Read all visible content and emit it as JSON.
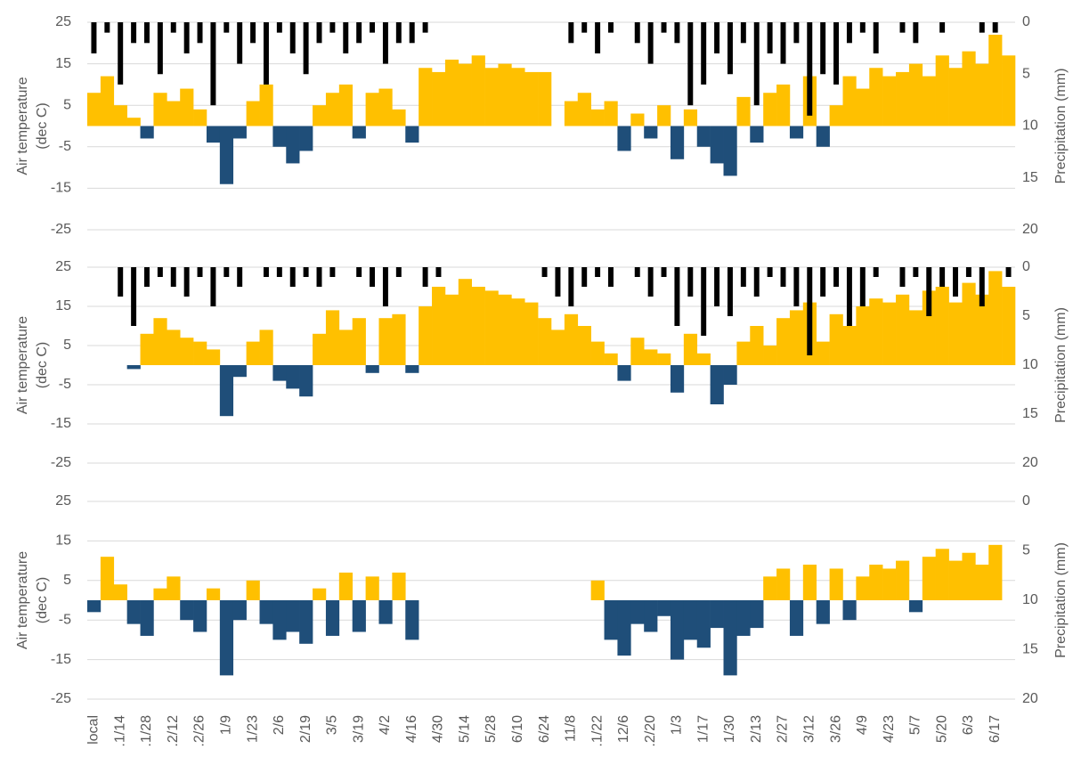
{
  "chart_data": [
    {
      "type": "bar",
      "ylabel": [
        "Air temperature",
        "(dec C)"
      ],
      "y2label": "Precipitation  (mm)",
      "ylim": [
        -25,
        25
      ],
      "yticks": [
        25,
        15,
        5,
        -5,
        -15,
        -25
      ],
      "y2lim": [
        0,
        20
      ],
      "y2ticks": [
        0,
        5,
        10,
        15,
        20
      ],
      "y2_inverted": true,
      "grid": true,
      "series": [
        {
          "color_positive": "#FFC000",
          "color_negative": "#1F4E79",
          "values": [
            8,
            12,
            5,
            2,
            -3,
            8,
            6,
            9,
            4,
            -4,
            -14,
            -3,
            6,
            10,
            -5,
            -9,
            -6,
            5,
            8,
            10,
            -3,
            8,
            9,
            4,
            -4,
            14,
            13,
            16,
            15,
            17,
            14,
            15,
            14,
            13,
            13,
            null,
            6,
            8,
            4,
            6,
            -6,
            3,
            -3,
            5,
            -8,
            4,
            -5,
            -9,
            -12,
            7,
            -4,
            8,
            10,
            -3,
            12,
            -5,
            5,
            12,
            9,
            14,
            12,
            13,
            15,
            12,
            17,
            14,
            18,
            15,
            22,
            17
          ]
        },
        {
          "axis": "y2",
          "color": "#000000",
          "values": [
            3,
            1,
            6,
            2,
            2,
            5,
            1,
            3,
            2,
            8,
            1,
            4,
            2,
            6,
            1,
            3,
            5,
            2,
            1,
            3,
            2,
            1,
            4,
            2,
            2,
            1,
            0,
            0,
            0,
            0,
            0,
            0,
            0,
            0,
            0,
            null,
            2,
            1,
            3,
            1,
            0,
            2,
            4,
            1,
            2,
            8,
            6,
            3,
            5,
            2,
            8,
            3,
            4,
            2,
            9,
            5,
            6,
            2,
            1,
            3,
            0,
            1,
            2,
            0,
            1,
            0,
            0,
            1,
            1,
            0
          ]
        }
      ]
    },
    {
      "type": "bar",
      "ylabel": [
        "Air temperature",
        "(dec C)"
      ],
      "y2label": "Precipitation  (mm)",
      "ylim": [
        -25,
        25
      ],
      "yticks": [
        25,
        15,
        5,
        -5,
        -15,
        -25
      ],
      "y2lim": [
        0,
        20
      ],
      "y2ticks": [
        0,
        5,
        10,
        15,
        20
      ],
      "y2_inverted": true,
      "grid": true,
      "series": [
        {
          "color_positive": "#FFC000",
          "color_negative": "#1F4E79",
          "values": [
            null,
            null,
            null,
            -1,
            8,
            12,
            9,
            7,
            6,
            4,
            -13,
            -3,
            6,
            9,
            -4,
            -6,
            -8,
            8,
            14,
            9,
            12,
            -2,
            12,
            13,
            -2,
            15,
            20,
            18,
            22,
            20,
            19,
            18,
            17,
            16,
            12,
            9,
            13,
            10,
            6,
            3,
            -4,
            7,
            4,
            3,
            -7,
            8,
            3,
            -10,
            -5,
            6,
            10,
            5,
            12,
            14,
            16,
            6,
            13,
            10,
            15,
            17,
            16,
            18,
            14,
            19,
            20,
            16,
            21,
            18,
            24,
            20
          ]
        },
        {
          "axis": "y2",
          "color": "#000000",
          "values": [
            null,
            null,
            3,
            6,
            2,
            1,
            2,
            3,
            1,
            4,
            1,
            2,
            0,
            1,
            1,
            2,
            1,
            2,
            1,
            0,
            1,
            2,
            4,
            1,
            0,
            2,
            1,
            0,
            0,
            0,
            0,
            0,
            0,
            0,
            1,
            3,
            4,
            2,
            1,
            2,
            0,
            1,
            3,
            1,
            6,
            3,
            7,
            4,
            5,
            2,
            3,
            1,
            2,
            4,
            9,
            3,
            2,
            6,
            4,
            1,
            0,
            2,
            1,
            5,
            2,
            3,
            1,
            4,
            0,
            1
          ]
        }
      ]
    },
    {
      "type": "bar",
      "ylabel": [
        "Air temperature",
        "(dec C)"
      ],
      "y2label": "Precipitation  (mm)",
      "ylim": [
        -25,
        25
      ],
      "yticks": [
        25,
        15,
        5,
        -5,
        -15,
        -25
      ],
      "y2lim": [
        0,
        20
      ],
      "y2ticks": [
        0,
        5,
        10,
        15,
        20
      ],
      "y2_inverted": true,
      "grid": true,
      "categories": [
        "local",
        null,
        ".1/14",
        null,
        ".1/28",
        null,
        ".2/12",
        null,
        ".2/26",
        null,
        "1/9",
        null,
        "1/23",
        null,
        "2/6",
        null,
        "2/19",
        null,
        "3/5",
        null,
        "3/19",
        null,
        "4/2",
        null,
        "4/16",
        null,
        "4/30",
        null,
        "5/14",
        null,
        "5/28",
        null,
        "6/10",
        null,
        "6/24",
        null,
        "11/8",
        null,
        ".1/22",
        null,
        "12/6",
        null,
        ".2/20",
        null,
        "1/3",
        null,
        "1/17",
        null,
        "1/30",
        null,
        "2/13",
        null,
        "2/27",
        null,
        "3/12",
        null,
        "3/26",
        null,
        "4/9",
        null,
        "4/23",
        null,
        "5/7",
        null,
        "5/20",
        null,
        "6/3",
        null,
        "6/17",
        null
      ],
      "series": [
        {
          "color_positive": "#FFC000",
          "color_negative": "#1F4E79",
          "values": [
            -3,
            11,
            4,
            -6,
            -9,
            3,
            6,
            -5,
            -8,
            3,
            -19,
            -5,
            5,
            -6,
            -10,
            -8,
            -11,
            3,
            -9,
            7,
            -8,
            6,
            -6,
            7,
            -10,
            null,
            null,
            null,
            null,
            null,
            null,
            null,
            null,
            null,
            null,
            null,
            null,
            null,
            5,
            -10,
            -14,
            -6,
            -8,
            -4,
            -15,
            -10,
            -12,
            -7,
            -19,
            -9,
            -7,
            6,
            8,
            -9,
            9,
            -6,
            8,
            -5,
            6,
            9,
            8,
            10,
            -3,
            11,
            13,
            10,
            12,
            9,
            14,
            null
          ]
        }
      ]
    }
  ]
}
